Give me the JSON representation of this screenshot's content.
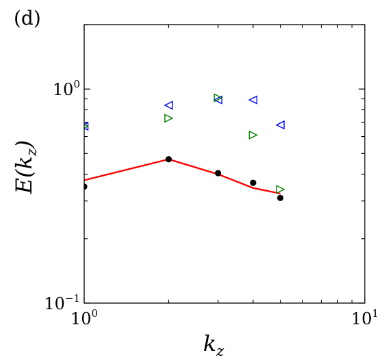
{
  "chart_data": {
    "type": "scatter",
    "panel_label": "(d)",
    "xlabel": {
      "base": "k",
      "sub": "z"
    },
    "ylabel": {
      "func": "E(",
      "base": "k",
      "sub": "z",
      "close": ")"
    },
    "xscale": "log",
    "yscale": "log",
    "xlim": [
      1,
      10
    ],
    "ylim": [
      0.1,
      2
    ],
    "x_ticks": [
      {
        "value": 1,
        "base": "10",
        "exp": "0"
      },
      {
        "value": 10,
        "base": "10",
        "exp": "1"
      }
    ],
    "y_ticks": [
      {
        "value": 0.1,
        "base": "10",
        "exp": "−1"
      },
      {
        "value": 1,
        "base": "10",
        "exp": "0"
      }
    ],
    "grid": false,
    "series": [
      {
        "marker": "triangle-left",
        "color": "#0000ff",
        "filled": false,
        "x": [
          1,
          2,
          3,
          4,
          5
        ],
        "y": [
          0.67,
          0.84,
          0.89,
          0.89,
          0.68
        ]
      },
      {
        "marker": "triangle-right",
        "color": "#008000",
        "filled": false,
        "x": [
          1,
          2,
          3,
          4,
          5
        ],
        "y": [
          0.67,
          0.73,
          0.91,
          0.61,
          0.34
        ]
      },
      {
        "marker": "circle",
        "color": "#000000",
        "filled": true,
        "x": [
          1,
          2,
          3,
          4,
          5
        ],
        "y": [
          0.35,
          0.47,
          0.405,
          0.365,
          0.31
        ]
      },
      {
        "marker": "line",
        "color": "#ff0000",
        "x": [
          1,
          2,
          3,
          4,
          5
        ],
        "y": [
          0.375,
          0.47,
          0.4,
          0.345,
          0.325
        ]
      }
    ]
  }
}
